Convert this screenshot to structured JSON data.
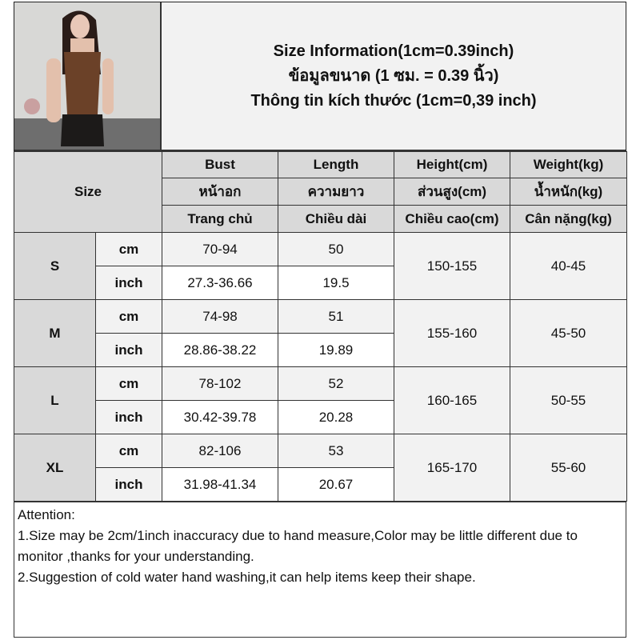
{
  "title": {
    "lines": [
      "Size Information(1cm=0.39inch)",
      "ข้อมูลขนาด (1 ซม. = 0.39 นิ้ว)",
      "Thông tin kích thước (1cm=0,39 inch)"
    ]
  },
  "photo": {
    "alt": "model-photo",
    "colors": {
      "top": "#6b4128",
      "shorts": "#1c1a19",
      "background": "#d8d8d6"
    }
  },
  "table": {
    "size_label": "Size",
    "columns": [
      [
        "Bust",
        "หน้าอก",
        "Trang chủ"
      ],
      [
        "Length",
        "ความยาว",
        "Chiều dài"
      ],
      [
        "Height(cm)",
        "ส่วนสูง(cm)",
        "Chiều cao(cm)"
      ],
      [
        "Weight(kg)",
        "น้ำหนัก(kg)",
        "Cân nặng(kg)"
      ]
    ],
    "rows": [
      {
        "size": "S",
        "cm": {
          "unit": "cm",
          "bust": "70-94",
          "length": "50"
        },
        "inch": {
          "unit": "inch",
          "bust": "27.3-36.66",
          "length": "19.5"
        },
        "height": "150-155",
        "weight": "40-45"
      },
      {
        "size": "M",
        "cm": {
          "unit": "cm",
          "bust": "74-98",
          "length": "51"
        },
        "inch": {
          "unit": "inch",
          "bust": "28.86-38.22",
          "length": "19.89"
        },
        "height": "155-160",
        "weight": "45-50"
      },
      {
        "size": "L",
        "cm": {
          "unit": "cm",
          "bust": "78-102",
          "length": "52"
        },
        "inch": {
          "unit": "inch",
          "bust": "30.42-39.78",
          "length": "20.28"
        },
        "height": "160-165",
        "weight": "50-55"
      },
      {
        "size": "XL",
        "cm": {
          "unit": "cm",
          "bust": "82-106",
          "length": "53"
        },
        "inch": {
          "unit": "inch",
          "bust": "31.98-41.34",
          "length": "20.67"
        },
        "height": "165-170",
        "weight": "55-60"
      }
    ]
  },
  "notes": {
    "heading": "Attention:",
    "items": [
      "1.Size may be 2cm/1inch inaccuracy due to hand measure,Color may be little different due to monitor ,thanks for your understanding.",
      "2.Suggestion of cold water hand washing,it can help items keep their shape."
    ]
  }
}
